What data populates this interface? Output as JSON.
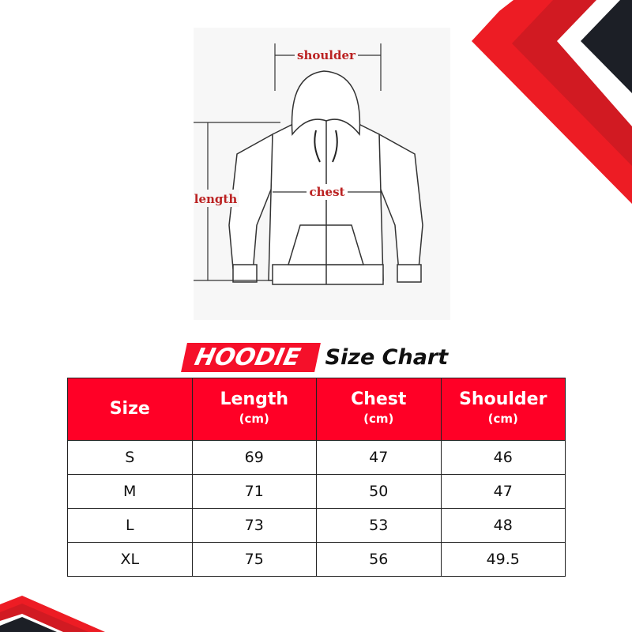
{
  "illustration": {
    "labels": {
      "shoulder": "shoulder",
      "length": "length",
      "chest": "chest"
    }
  },
  "title": {
    "highlight": "HOODIE",
    "rest": "Size Chart"
  },
  "table": {
    "headers": [
      {
        "label": "Size",
        "unit": ""
      },
      {
        "label": "Length",
        "unit": "(cm)"
      },
      {
        "label": "Chest",
        "unit": "(cm)"
      },
      {
        "label": "Shoulder",
        "unit": "(cm)"
      }
    ],
    "rows": [
      [
        "S",
        "69",
        "47",
        "46"
      ],
      [
        "M",
        "71",
        "50",
        "47"
      ],
      [
        "L",
        "73",
        "53",
        "48"
      ],
      [
        "XL",
        "75",
        "56",
        "49.5"
      ]
    ]
  },
  "colors": {
    "accent": "#ff0026",
    "accent_dark": "#d11a22",
    "navy": "#1c1f26"
  }
}
